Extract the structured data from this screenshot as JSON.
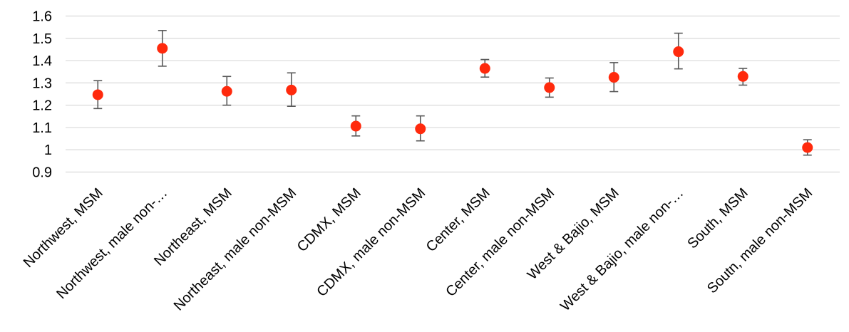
{
  "chart_data": {
    "type": "scatter",
    "title": "",
    "xlabel": "",
    "ylabel": "",
    "ylim": [
      0.9,
      1.6
    ],
    "yticks": [
      0.9,
      1.0,
      1.1,
      1.2,
      1.3,
      1.4,
      1.5,
      1.6
    ],
    "ytick_labels": [
      "0.9",
      "1",
      "1.1",
      "1.2",
      "1.3",
      "1.4",
      "1.5",
      "1.6"
    ],
    "grid": true,
    "legend": "none",
    "marker_color": "#ff2a0d",
    "errorbar_color": "#595959",
    "categories": [
      "Northwest, MSM",
      "Northwest, male non-…",
      "Northeast, MSM",
      "Northeast, male non-MSM",
      "CDMX, MSM",
      "CDMX, male non-MSM",
      "Center, MSM",
      "Center, male non-MSM",
      "West & Bajio, MSM",
      "West & Bajio, male non-…",
      "South, MSM",
      "Soutn, male non-MSM"
    ],
    "values": [
      1.247,
      1.455,
      1.262,
      1.268,
      1.106,
      1.094,
      1.365,
      1.279,
      1.325,
      1.44,
      1.329,
      1.01
    ],
    "lower": [
      1.185,
      1.375,
      1.2,
      1.195,
      1.062,
      1.04,
      1.326,
      1.236,
      1.261,
      1.363,
      1.29,
      0.976
    ],
    "upper": [
      1.31,
      1.535,
      1.329,
      1.345,
      1.152,
      1.152,
      1.405,
      1.322,
      1.391,
      1.523,
      1.365,
      1.045
    ]
  }
}
